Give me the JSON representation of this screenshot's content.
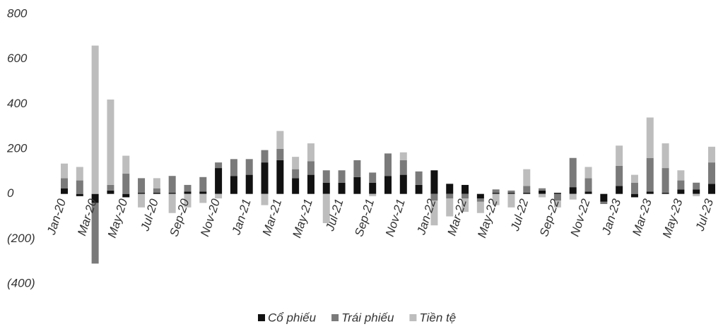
{
  "chart_data": {
    "type": "bar",
    "stacked": true,
    "categories": [
      "Jan-20",
      null,
      "Mar-20",
      null,
      "May-20",
      null,
      "Jul-20",
      null,
      "Sep-20",
      null,
      "Nov-20",
      null,
      "Jan-21",
      null,
      "Mar-21",
      null,
      "May-21",
      null,
      "Jul-21",
      null,
      "Sep-21",
      null,
      "Nov-21",
      null,
      "Jan-22",
      null,
      "Mar-22",
      null,
      "May-22",
      null,
      "Jul-22",
      null,
      "Sep-22",
      null,
      "Nov-22",
      null,
      "Jan-23",
      null,
      "Mar-23",
      null,
      "May-23",
      null,
      "Jul-23"
    ],
    "series": [
      {
        "name": "Cổ phiếu",
        "color": "#111111",
        "values": [
          25,
          -10,
          -40,
          15,
          -15,
          5,
          5,
          5,
          10,
          10,
          115,
          80,
          85,
          140,
          150,
          70,
          85,
          50,
          50,
          75,
          50,
          80,
          85,
          40,
          105,
          45,
          40,
          -20,
          5,
          5,
          5,
          15,
          5,
          30,
          10,
          -35,
          35,
          -15,
          10,
          5,
          20,
          20,
          45
        ]
      },
      {
        "name": "Trái phiếu",
        "color": "#7a7a7a",
        "values": [
          45,
          60,
          -270,
          25,
          90,
          65,
          20,
          75,
          30,
          65,
          25,
          75,
          70,
          55,
          50,
          40,
          60,
          55,
          55,
          75,
          45,
          100,
          65,
          60,
          -30,
          -20,
          -20,
          -15,
          15,
          10,
          30,
          10,
          -30,
          130,
          60,
          -10,
          90,
          50,
          150,
          110,
          40,
          30,
          95
        ]
      },
      {
        "name": "Tiền tệ",
        "color": "#bdbdbd",
        "values": [
          65,
          60,
          660,
          380,
          80,
          -60,
          45,
          -85,
          -60,
          -40,
          -20,
          0,
          0,
          -50,
          80,
          55,
          80,
          -130,
          0,
          0,
          -10,
          0,
          35,
          0,
          -110,
          -80,
          -60,
          -50,
          -50,
          -60,
          75,
          -15,
          -30,
          -25,
          50,
          0,
          90,
          35,
          180,
          110,
          45,
          -10,
          70
        ]
      }
    ],
    "ylim": [
      -400,
      800
    ],
    "yticks": [
      {
        "value": -400,
        "label": "(400)"
      },
      {
        "value": -200,
        "label": "(200)"
      },
      0,
      200,
      400,
      600,
      800
    ],
    "legend": "bottom"
  }
}
